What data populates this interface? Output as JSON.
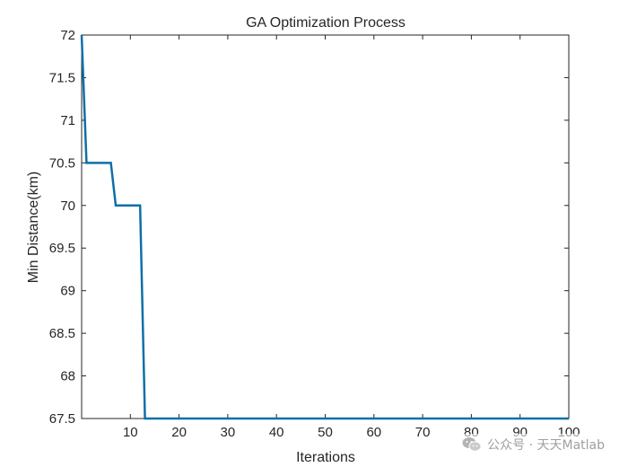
{
  "chart_data": {
    "type": "line",
    "title": "GA Optimization Process",
    "xlabel": "Iterations",
    "ylabel": "Min Distance(km)",
    "xlim": [
      0,
      100
    ],
    "ylim": [
      67.5,
      72
    ],
    "xticks": [
      10,
      20,
      30,
      40,
      50,
      60,
      70,
      80,
      90,
      100
    ],
    "yticks": [
      67.5,
      68,
      68.5,
      69,
      69.5,
      70,
      70.5,
      71,
      71.5,
      72
    ],
    "grid": false,
    "line_color": "#0f6fa8",
    "series": [
      {
        "x": [
          0,
          1,
          6,
          7,
          12,
          13,
          100
        ],
        "y": [
          72,
          70.5,
          70.5,
          70,
          70,
          67.5,
          67.5
        ]
      }
    ]
  },
  "watermark": {
    "text": "公众号 · 天天Matlab",
    "icon": "wechat-icon"
  }
}
